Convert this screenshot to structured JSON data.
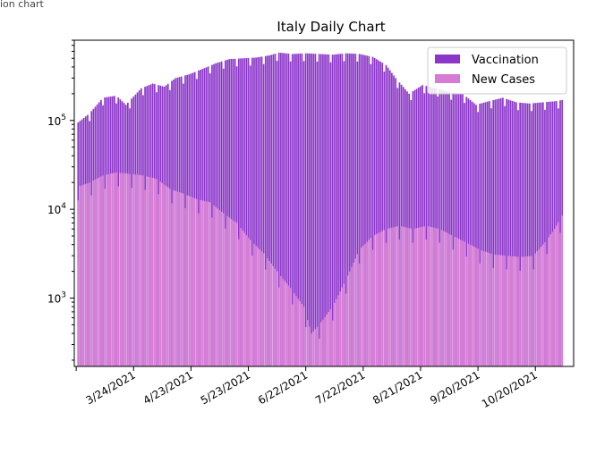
{
  "corner_text": "ion chart",
  "colors": {
    "vaccination": "#8b35c9",
    "new_cases": "#d57bd5",
    "axis": "#000000",
    "legend_border": "#cccccc"
  },
  "chart_data": {
    "type": "bar",
    "title": "Italy Daily Chart",
    "xlabel": "",
    "ylabel": "",
    "yscale": "log",
    "ylim": [
      170,
      800000
    ],
    "xlim": [
      "2021-02-21",
      "2021-11-09"
    ],
    "x_tick_labels": [
      "3/24/2021",
      "4/23/2021",
      "5/23/2021",
      "6/22/2021",
      "7/22/2021",
      "8/21/2021",
      "9/20/2021",
      "10/20/2021"
    ],
    "y_tick_labels": [
      {
        "value": 1000,
        "base": "10",
        "exp": "3"
      },
      {
        "value": 10000,
        "base": "10",
        "exp": "4"
      },
      {
        "value": 100000,
        "base": "10",
        "exp": "5"
      }
    ],
    "grid": false,
    "legend_position": "top-right",
    "series": [
      {
        "name": "Vaccination",
        "color": "#8b35c9",
        "points": [
          [
            "2021-02-23",
            95000
          ],
          [
            "2021-03-01",
            120000
          ],
          [
            "2021-03-08",
            180000
          ],
          [
            "2021-03-15",
            190000
          ],
          [
            "2021-03-20",
            150000
          ],
          [
            "2021-03-28",
            230000
          ],
          [
            "2021-04-03",
            260000
          ],
          [
            "2021-04-09",
            240000
          ],
          [
            "2021-04-15",
            300000
          ],
          [
            "2021-04-22",
            330000
          ],
          [
            "2021-04-29",
            380000
          ],
          [
            "2021-05-06",
            440000
          ],
          [
            "2021-05-13",
            490000
          ],
          [
            "2021-05-20",
            500000
          ],
          [
            "2021-05-27",
            510000
          ],
          [
            "2021-06-03",
            540000
          ],
          [
            "2021-06-08",
            580000
          ],
          [
            "2021-06-15",
            560000
          ],
          [
            "2021-06-22",
            570000
          ],
          [
            "2021-06-29",
            560000
          ],
          [
            "2021-07-06",
            550000
          ],
          [
            "2021-07-13",
            570000
          ],
          [
            "2021-07-20",
            560000
          ],
          [
            "2021-07-27",
            520000
          ],
          [
            "2021-08-03",
            420000
          ],
          [
            "2021-08-08",
            300000
          ],
          [
            "2021-08-15",
            200000
          ],
          [
            "2021-08-22",
            250000
          ],
          [
            "2021-08-29",
            230000
          ],
          [
            "2021-09-05",
            210000
          ],
          [
            "2021-09-12",
            200000
          ],
          [
            "2021-09-19",
            150000
          ],
          [
            "2021-09-26",
            165000
          ],
          [
            "2021-10-03",
            180000
          ],
          [
            "2021-10-10",
            160000
          ],
          [
            "2021-10-17",
            155000
          ],
          [
            "2021-10-24",
            160000
          ],
          [
            "2021-10-31",
            165000
          ],
          [
            "2021-11-03",
            170000
          ]
        ]
      },
      {
        "name": "New Cases",
        "color": "#d57bd5",
        "points": [
          [
            "2021-02-23",
            18000
          ],
          [
            "2021-03-01",
            20000
          ],
          [
            "2021-03-08",
            24000
          ],
          [
            "2021-03-15",
            26000
          ],
          [
            "2021-03-22",
            25000
          ],
          [
            "2021-03-29",
            24000
          ],
          [
            "2021-04-05",
            22000
          ],
          [
            "2021-04-12",
            17000
          ],
          [
            "2021-04-19",
            15000
          ],
          [
            "2021-04-26",
            13000
          ],
          [
            "2021-05-03",
            12000
          ],
          [
            "2021-05-10",
            9000
          ],
          [
            "2021-05-17",
            7000
          ],
          [
            "2021-05-24",
            4500
          ],
          [
            "2021-05-31",
            3200
          ],
          [
            "2021-06-07",
            2000
          ],
          [
            "2021-06-14",
            1300
          ],
          [
            "2021-06-21",
            800
          ],
          [
            "2021-06-25",
            400
          ],
          [
            "2021-06-29",
            500
          ],
          [
            "2021-07-06",
            800
          ],
          [
            "2021-07-13",
            1600
          ],
          [
            "2021-07-20",
            3500
          ],
          [
            "2021-07-27",
            5000
          ],
          [
            "2021-08-03",
            6000
          ],
          [
            "2021-08-10",
            6500
          ],
          [
            "2021-08-17",
            6000
          ],
          [
            "2021-08-24",
            6500
          ],
          [
            "2021-08-31",
            6000
          ],
          [
            "2021-09-07",
            5000
          ],
          [
            "2021-09-14",
            4200
          ],
          [
            "2021-09-21",
            3500
          ],
          [
            "2021-09-28",
            3100
          ],
          [
            "2021-10-05",
            3000
          ],
          [
            "2021-10-12",
            2900
          ],
          [
            "2021-10-19",
            3000
          ],
          [
            "2021-10-26",
            4500
          ],
          [
            "2021-10-30",
            6000
          ],
          [
            "2021-11-03",
            8500
          ]
        ]
      }
    ]
  }
}
